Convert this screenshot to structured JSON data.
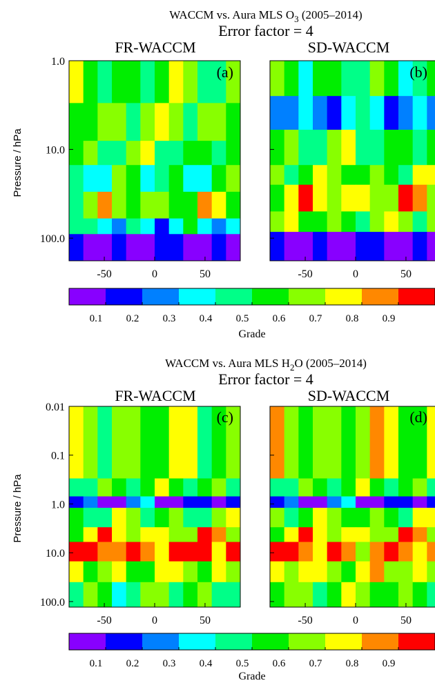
{
  "colors": {
    "grade_scale": [
      "#8800ff",
      "#0000ff",
      "#0080ff",
      "#00ffff",
      "#00ff88",
      "#00ee00",
      "#88ff00",
      "#ffff00",
      "#ff8800",
      "#ff0000"
    ]
  },
  "chart_data": [
    {
      "type": "heatmap",
      "title": "WACCM vs. Aura MLS O3 (2005–2014)",
      "title_main": "WACCM vs. Aura MLS O",
      "title_sub": "3",
      "title_tail": " (2005–2014)",
      "subtitle": "Error factor = 4",
      "ylabel": "Pressure / hPa",
      "yscale": "log",
      "ylim": [
        180,
        1.0
      ],
      "xlim": [
        -85,
        85
      ],
      "xticks": [
        -50,
        0,
        50
      ],
      "xtick_labels": [
        "-50",
        "0",
        "50"
      ],
      "yticks": [
        1.0,
        10.0,
        100.0
      ],
      "ytick_labels": [
        "1.0",
        "10.0",
        "100.0"
      ],
      "panels": [
        {
          "name": "FR-WACCM",
          "letter": "(a)",
          "levels": [
            1.0,
            2.0,
            5.0,
            10.0,
            20.0,
            40.0,
            60.0,
            100.0,
            180.0
          ],
          "bands": [
            {
              "p_top": 1.0,
              "p_bot": 3.0,
              "grade": 0.55
            },
            {
              "p_top": 3.0,
              "p_bot": 8.0,
              "grade": 0.62
            },
            {
              "p_top": 8.0,
              "p_bot": 15.0,
              "grade": 0.55
            },
            {
              "p_top": 15.0,
              "p_bot": 30.0,
              "grade": 0.45
            },
            {
              "p_top": 30.0,
              "p_bot": 60.0,
              "grade": 0.65
            },
            {
              "p_top": 60.0,
              "p_bot": 90.0,
              "grade": 0.35
            },
            {
              "p_top": 90.0,
              "p_bot": 180.0,
              "grade": 0.05
            }
          ]
        },
        {
          "name": "SD-WACCM",
          "letter": "(b)",
          "bands": [
            {
              "p_top": 1.0,
              "p_bot": 2.5,
              "grade": 0.5
            },
            {
              "p_top": 2.5,
              "p_bot": 6.0,
              "grade": 0.3
            },
            {
              "p_top": 6.0,
              "p_bot": 15.0,
              "grade": 0.55
            },
            {
              "p_top": 15.0,
              "p_bot": 25.0,
              "grade": 0.6
            },
            {
              "p_top": 25.0,
              "p_bot": 50.0,
              "grade": 0.75
            },
            {
              "p_top": 50.0,
              "p_bot": 85.0,
              "grade": 0.6
            },
            {
              "p_top": 85.0,
              "p_bot": 180.0,
              "grade": 0.05
            }
          ]
        }
      ],
      "colorbar": {
        "title": "Grade",
        "ticks": [
          "0.1",
          "0.2",
          "0.3",
          "0.4",
          "0.5",
          "0.6",
          "0.7",
          "0.8",
          "0.9"
        ]
      }
    },
    {
      "type": "heatmap",
      "title": "WACCM vs. Aura MLS H2O (2005–2014)",
      "title_main": "WACCM vs. Aura MLS H",
      "title_sub": "2",
      "title_tail": "O (2005–2014)",
      "subtitle": "Error factor = 4",
      "ylabel": "Pressure / hPa",
      "yscale": "log",
      "ylim": [
        130,
        0.01
      ],
      "xlim": [
        -85,
        85
      ],
      "xticks": [
        -50,
        0,
        50
      ],
      "xtick_labels": [
        "-50",
        "0",
        "50"
      ],
      "yticks": [
        0.01,
        0.1,
        1.0,
        10.0,
        100.0
      ],
      "ytick_labels": [
        "0.01",
        "0.1",
        "1.0",
        "10.0",
        "100.0"
      ],
      "panels": [
        {
          "name": "FR-WACCM",
          "letter": "(c)",
          "bands": [
            {
              "p_top": 0.01,
              "p_bot": 0.3,
              "grade": 0.62
            },
            {
              "p_top": 0.3,
              "p_bot": 0.7,
              "grade": 0.55
            },
            {
              "p_top": 0.7,
              "p_bot": 1.2,
              "grade": 0.15
            },
            {
              "p_top": 1.2,
              "p_bot": 3.0,
              "grade": 0.55
            },
            {
              "p_top": 3.0,
              "p_bot": 6.0,
              "grade": 0.75
            },
            {
              "p_top": 6.0,
              "p_bot": 15.0,
              "grade": 0.9
            },
            {
              "p_top": 15.0,
              "p_bot": 40.0,
              "grade": 0.65
            },
            {
              "p_top": 40.0,
              "p_bot": 130.0,
              "grade": 0.55
            }
          ]
        },
        {
          "name": "SD-WACCM",
          "letter": "(d)",
          "bands": [
            {
              "p_top": 0.01,
              "p_bot": 0.3,
              "grade": 0.65
            },
            {
              "p_top": 0.3,
              "p_bot": 0.7,
              "grade": 0.55
            },
            {
              "p_top": 0.7,
              "p_bot": 1.2,
              "grade": 0.15
            },
            {
              "p_top": 1.2,
              "p_bot": 3.0,
              "grade": 0.6
            },
            {
              "p_top": 3.0,
              "p_bot": 6.0,
              "grade": 0.75
            },
            {
              "p_top": 6.0,
              "p_bot": 15.0,
              "grade": 0.85
            },
            {
              "p_top": 15.0,
              "p_bot": 40.0,
              "grade": 0.7
            },
            {
              "p_top": 40.0,
              "p_bot": 130.0,
              "grade": 0.6
            }
          ]
        }
      ],
      "colorbar": {
        "title": "Grade",
        "ticks": [
          "0.1",
          "0.2",
          "0.3",
          "0.4",
          "0.5",
          "0.6",
          "0.7",
          "0.8",
          "0.9"
        ]
      }
    }
  ]
}
